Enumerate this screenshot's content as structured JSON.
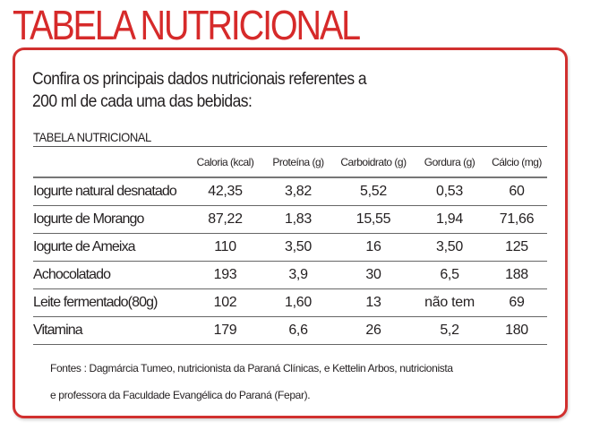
{
  "header": {
    "title": "TABELA NUTRICIONAL"
  },
  "intro": {
    "line1": "Confira os principais dados nutricionais referentes a",
    "line2": "200 ml de cada uma das bebidas:"
  },
  "table": {
    "caption": "TABELA NUTRICIONAL",
    "columns": [
      "",
      "Caloria (kcal)",
      "Proteína (g)",
      "Carboidrato (g)",
      "Gordura (g)",
      "Cálcio (mg)"
    ],
    "rows": [
      [
        "Iogurte natural desnatado",
        "42,35",
        "3,82",
        "5,52",
        "0,53",
        "60"
      ],
      [
        "Iogurte de Morango",
        "87,22",
        "1,83",
        "15,55",
        "1,94",
        "71,66"
      ],
      [
        "Iogurte de Ameixa",
        "110",
        "3,50",
        "16",
        "3,50",
        "125"
      ],
      [
        "Achocolatado",
        "193",
        "3,9",
        "30",
        "6,5",
        "188"
      ],
      [
        "Leite fermentado(80g)",
        "102",
        "1,60",
        "13",
        "não tem",
        "69"
      ],
      [
        "Vitamina",
        "179",
        "6,6",
        "26",
        "5,2",
        "180"
      ]
    ]
  },
  "sources": {
    "line1": "Fontes : Dagmárcia Tumeo, nutricionista da Paraná Clínicas, e Kettelin Arbos, nutricionista",
    "line2": "e professora da Faculdade Evangélica do Paraná (Fepar)."
  },
  "colors": {
    "accent_red": "#d62a2a",
    "border_red": "#d1302f",
    "text": "#231f20"
  }
}
